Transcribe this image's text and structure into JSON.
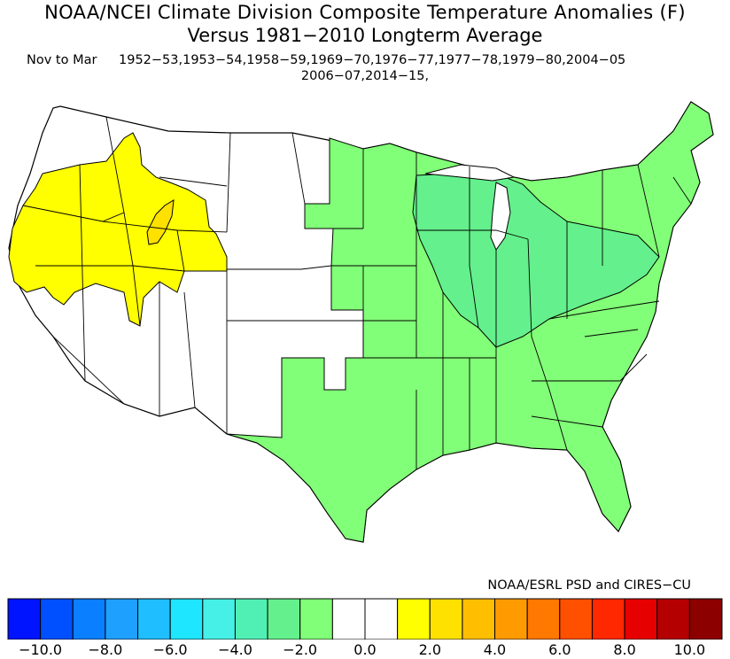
{
  "title": {
    "line1": "NOAA/NCEI Climate Division Composite Temperature Anomalies (F)",
    "line2": "Versus 1981−2010 Longterm Average",
    "period": "Nov to Mar",
    "years_line1": "1952−53,1953−54,1958−59,1969−70,1976−77,1977−78,1979−80,2004−05",
    "years_line2": "2006−07,2014−15,"
  },
  "credit": "NOAA/ESRL PSD and CIRES−CU",
  "legend": {
    "colors": [
      "#0014ff",
      "#0050ff",
      "#0a7fff",
      "#1ea0ff",
      "#1ebeff",
      "#1ee6ff",
      "#46f0e6",
      "#50f0b4",
      "#64f08c",
      "#82ff78",
      "#ffffff",
      "#ffffff",
      "#ffff00",
      "#ffe100",
      "#ffbe00",
      "#ff9b00",
      "#ff7800",
      "#ff5000",
      "#ff2800",
      "#e60000",
      "#b40000",
      "#8c0000"
    ],
    "tick_labels": [
      "−10.0",
      "−8.0",
      "−6.0",
      "−4.0",
      "−2.0",
      "0.0",
      "2.0",
      "4.0",
      "6.0",
      "8.0",
      "10.0"
    ]
  },
  "map_colors": {
    "minus_1_to_2": "#82ff78",
    "minus_2_to_3": "#64f08c",
    "minus_3_to_4": "#50f0b4",
    "plus_1_to_2": "#ffff00",
    "plus_2_to_3": "#ffe100",
    "near_zero": "#ffffff",
    "border": "#000000"
  }
}
